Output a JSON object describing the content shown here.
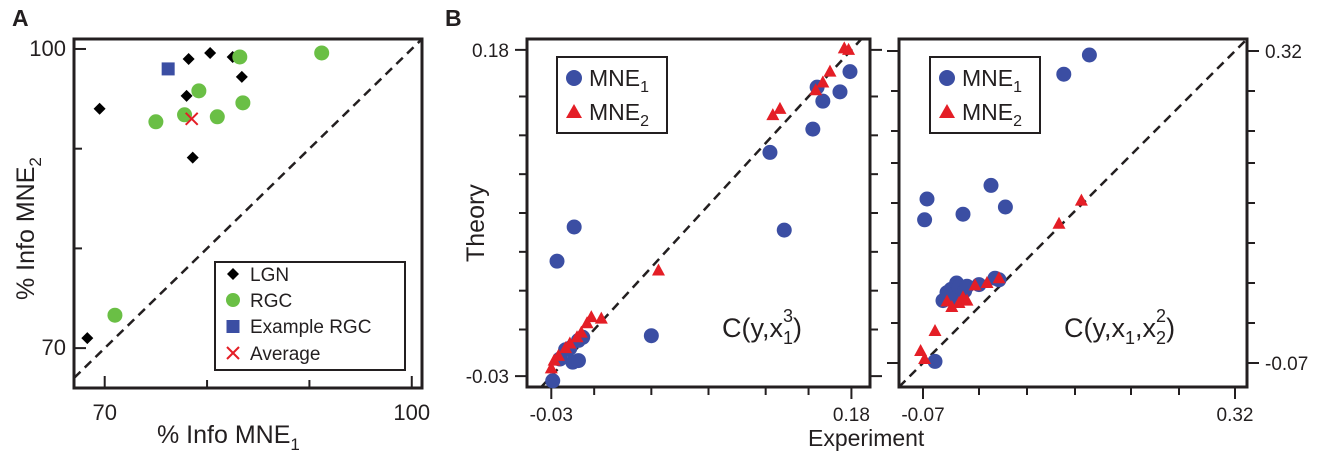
{
  "colors": {
    "black": "#000000",
    "green": "#6abf45",
    "blue": "#3b4ea3",
    "red": "#e41e26"
  },
  "panel_labels": {
    "a": "A",
    "b": "B"
  },
  "chart_data": [
    {
      "type": "scatter",
      "panel": "A",
      "xlabel": "% Info MNE",
      "xlabel_sub": "1",
      "ylabel": "% Info MNE",
      "ylabel_sub": "2",
      "xlim": [
        67,
        101
      ],
      "ylim": [
        66,
        101
      ],
      "xticks": [
        70,
        100
      ],
      "yticks": [
        70,
        100
      ],
      "reference_line": "diagonal",
      "legend_position": "bottom-right",
      "series": [
        {
          "name": "LGN",
          "marker": "diamond",
          "color": "#000000",
          "points": [
            [
              68.3,
              71
            ],
            [
              69.5,
              94
            ],
            [
              78.2,
              99
            ],
            [
              80.3,
              99.6
            ],
            [
              82.5,
              99.2
            ],
            [
              83.4,
              97.2
            ],
            [
              78,
              95.3
            ],
            [
              78.6,
              89.1
            ]
          ]
        },
        {
          "name": "RGC",
          "marker": "circle",
          "color": "#6abf45",
          "points": [
            [
              71,
              73.3
            ],
            [
              75,
              92.7
            ],
            [
              77.8,
              93.4
            ],
            [
              79.2,
              95.8
            ],
            [
              81,
              93.2
            ],
            [
              83.2,
              99.2
            ],
            [
              83.5,
              94.6
            ],
            [
              91.2,
              99.6
            ]
          ]
        },
        {
          "name": "Example RGC",
          "marker": "square",
          "color": "#3b4ea3",
          "points": [
            [
              76.2,
              98
            ]
          ]
        },
        {
          "name": "Average",
          "marker": "x",
          "color": "#e41e26",
          "points": [
            [
              78.5,
              93
            ]
          ]
        }
      ]
    },
    {
      "type": "scatter",
      "panel": "B-left",
      "annotation": "C(y,x",
      "annotation_sub": "1",
      "annotation_sup": "3",
      "annotation_end": ")",
      "ylabel": "Theory",
      "xlim": [
        -0.047,
        0.193
      ],
      "ylim": [
        -0.037,
        0.187
      ],
      "xticks": [
        -0.03,
        0.18
      ],
      "yticks": [
        -0.03,
        0.18
      ],
      "reference_line": "diagonal",
      "legend_position": "top-left",
      "series": [
        {
          "name": "MNE",
          "name_sub": "1",
          "marker": "circle",
          "color": "#3b4ea3",
          "points": [
            [
              -0.029,
              -0.033
            ],
            [
              -0.024,
              -0.019
            ],
            [
              -0.02,
              -0.013
            ],
            [
              -0.017,
              -0.012
            ],
            [
              -0.015,
              -0.021
            ],
            [
              -0.011,
              -0.007
            ],
            [
              -0.008,
              -0.005
            ],
            [
              0.04,
              -0.004
            ],
            [
              -0.026,
              0.044
            ],
            [
              -0.014,
              0.066
            ],
            [
              -0.011,
              -0.02
            ],
            [
              0.123,
              0.114
            ],
            [
              0.133,
              0.064
            ],
            [
              0.153,
              0.129
            ],
            [
              0.16,
              0.147
            ],
            [
              0.156,
              0.156
            ],
            [
              0.172,
              0.153
            ],
            [
              0.179,
              0.166
            ]
          ]
        },
        {
          "name": "MNE",
          "name_sub": "2",
          "marker": "triangle",
          "color": "#e41e26",
          "points": [
            [
              -0.03,
              -0.025
            ],
            [
              -0.028,
              -0.02
            ],
            [
              -0.025,
              -0.017
            ],
            [
              -0.02,
              -0.012
            ],
            [
              -0.017,
              -0.009
            ],
            [
              -0.012,
              -0.005
            ],
            [
              -0.009,
              -0.002
            ],
            [
              -0.005,
              0.004
            ],
            [
              -0.002,
              0.008
            ],
            [
              0.005,
              0.007
            ],
            [
              0.045,
              0.038
            ],
            [
              0.125,
              0.138
            ],
            [
              0.13,
              0.142
            ],
            [
              0.155,
              0.154
            ],
            [
              0.16,
              0.159
            ],
            [
              0.165,
              0.166
            ],
            [
              0.175,
              0.181
            ],
            [
              0.178,
              0.18
            ]
          ]
        }
      ]
    },
    {
      "type": "scatter",
      "panel": "B-right",
      "annotation": "C(y,x",
      "annotation_sub1": "1",
      "annotation_mid": ",x",
      "annotation_sub2": "2",
      "annotation_sup": "2",
      "annotation_end": ")",
      "xlabel": "Experiment",
      "xlim": [
        -0.1,
        0.335
      ],
      "ylim": [
        -0.1,
        0.335
      ],
      "xticks": [
        -0.07,
        0.32
      ],
      "yticks": [
        -0.07,
        0.32
      ],
      "reference_line": "diagonal",
      "legend_position": "top-left",
      "series": [
        {
          "name": "MNE",
          "name_sub": "1",
          "marker": "circle",
          "color": "#3b4ea3",
          "points": [
            [
              -0.068,
              0.109
            ],
            [
              -0.065,
              0.135
            ],
            [
              -0.055,
              -0.068
            ],
            [
              -0.045,
              0.008
            ],
            [
              -0.04,
              0.018
            ],
            [
              -0.035,
              0.022
            ],
            [
              -0.03,
              0.01
            ],
            [
              -0.028,
              0.03
            ],
            [
              -0.025,
              0.025
            ],
            [
              -0.02,
              0.116
            ],
            [
              -0.018,
              0.02
            ],
            [
              -0.015,
              0.026
            ],
            [
              0.0,
              0.028
            ],
            [
              0.02,
              0.036
            ],
            [
              0.025,
              0.034
            ],
            [
              0.015,
              0.152
            ],
            [
              0.033,
              0.125
            ],
            [
              0.106,
              0.291
            ],
            [
              0.138,
              0.315
            ]
          ]
        },
        {
          "name": "MNE",
          "name_sub": "2",
          "marker": "triangle",
          "color": "#e41e26",
          "points": [
            [
              -0.073,
              -0.055
            ],
            [
              -0.068,
              -0.065
            ],
            [
              -0.055,
              -0.03
            ],
            [
              -0.04,
              0.007
            ],
            [
              -0.034,
              0.0
            ],
            [
              -0.025,
              0.005
            ],
            [
              -0.02,
              0.012
            ],
            [
              -0.015,
              0.008
            ],
            [
              -0.005,
              0.027
            ],
            [
              0.01,
              0.03
            ],
            [
              0.025,
              0.036
            ],
            [
              0.1,
              0.104
            ],
            [
              0.128,
              0.133
            ]
          ]
        }
      ]
    }
  ]
}
